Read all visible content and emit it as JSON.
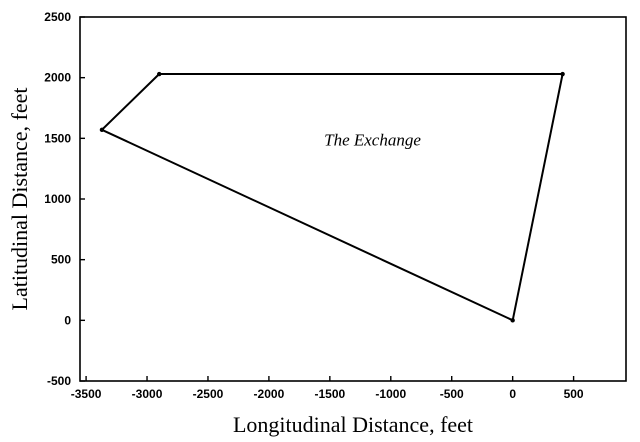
{
  "chart_data": {
    "type": "line",
    "title": "",
    "xlabel": "Longitudinal Distance, feet",
    "ylabel": "Latitudinal Distance, feet",
    "xlim": [
      -3550,
      930
    ],
    "ylim": [
      -500,
      2500
    ],
    "xticks": [
      -3500,
      -3000,
      -2500,
      -2000,
      -1500,
      -1000,
      -500,
      0,
      500
    ],
    "yticks": [
      -500,
      0,
      500,
      1000,
      1500,
      2000,
      2500
    ],
    "grid": false,
    "series": [
      {
        "name": "",
        "closed": true,
        "points": [
          {
            "x": 0,
            "y": 0
          },
          {
            "x": 410,
            "y": 2030
          },
          {
            "x": -2900,
            "y": 2030
          },
          {
            "x": -3370,
            "y": 1570
          },
          {
            "x": 0,
            "y": 0
          }
        ]
      }
    ],
    "annotations": [
      {
        "text": "The Exchange",
        "x": -1150,
        "y": 1440
      }
    ]
  }
}
